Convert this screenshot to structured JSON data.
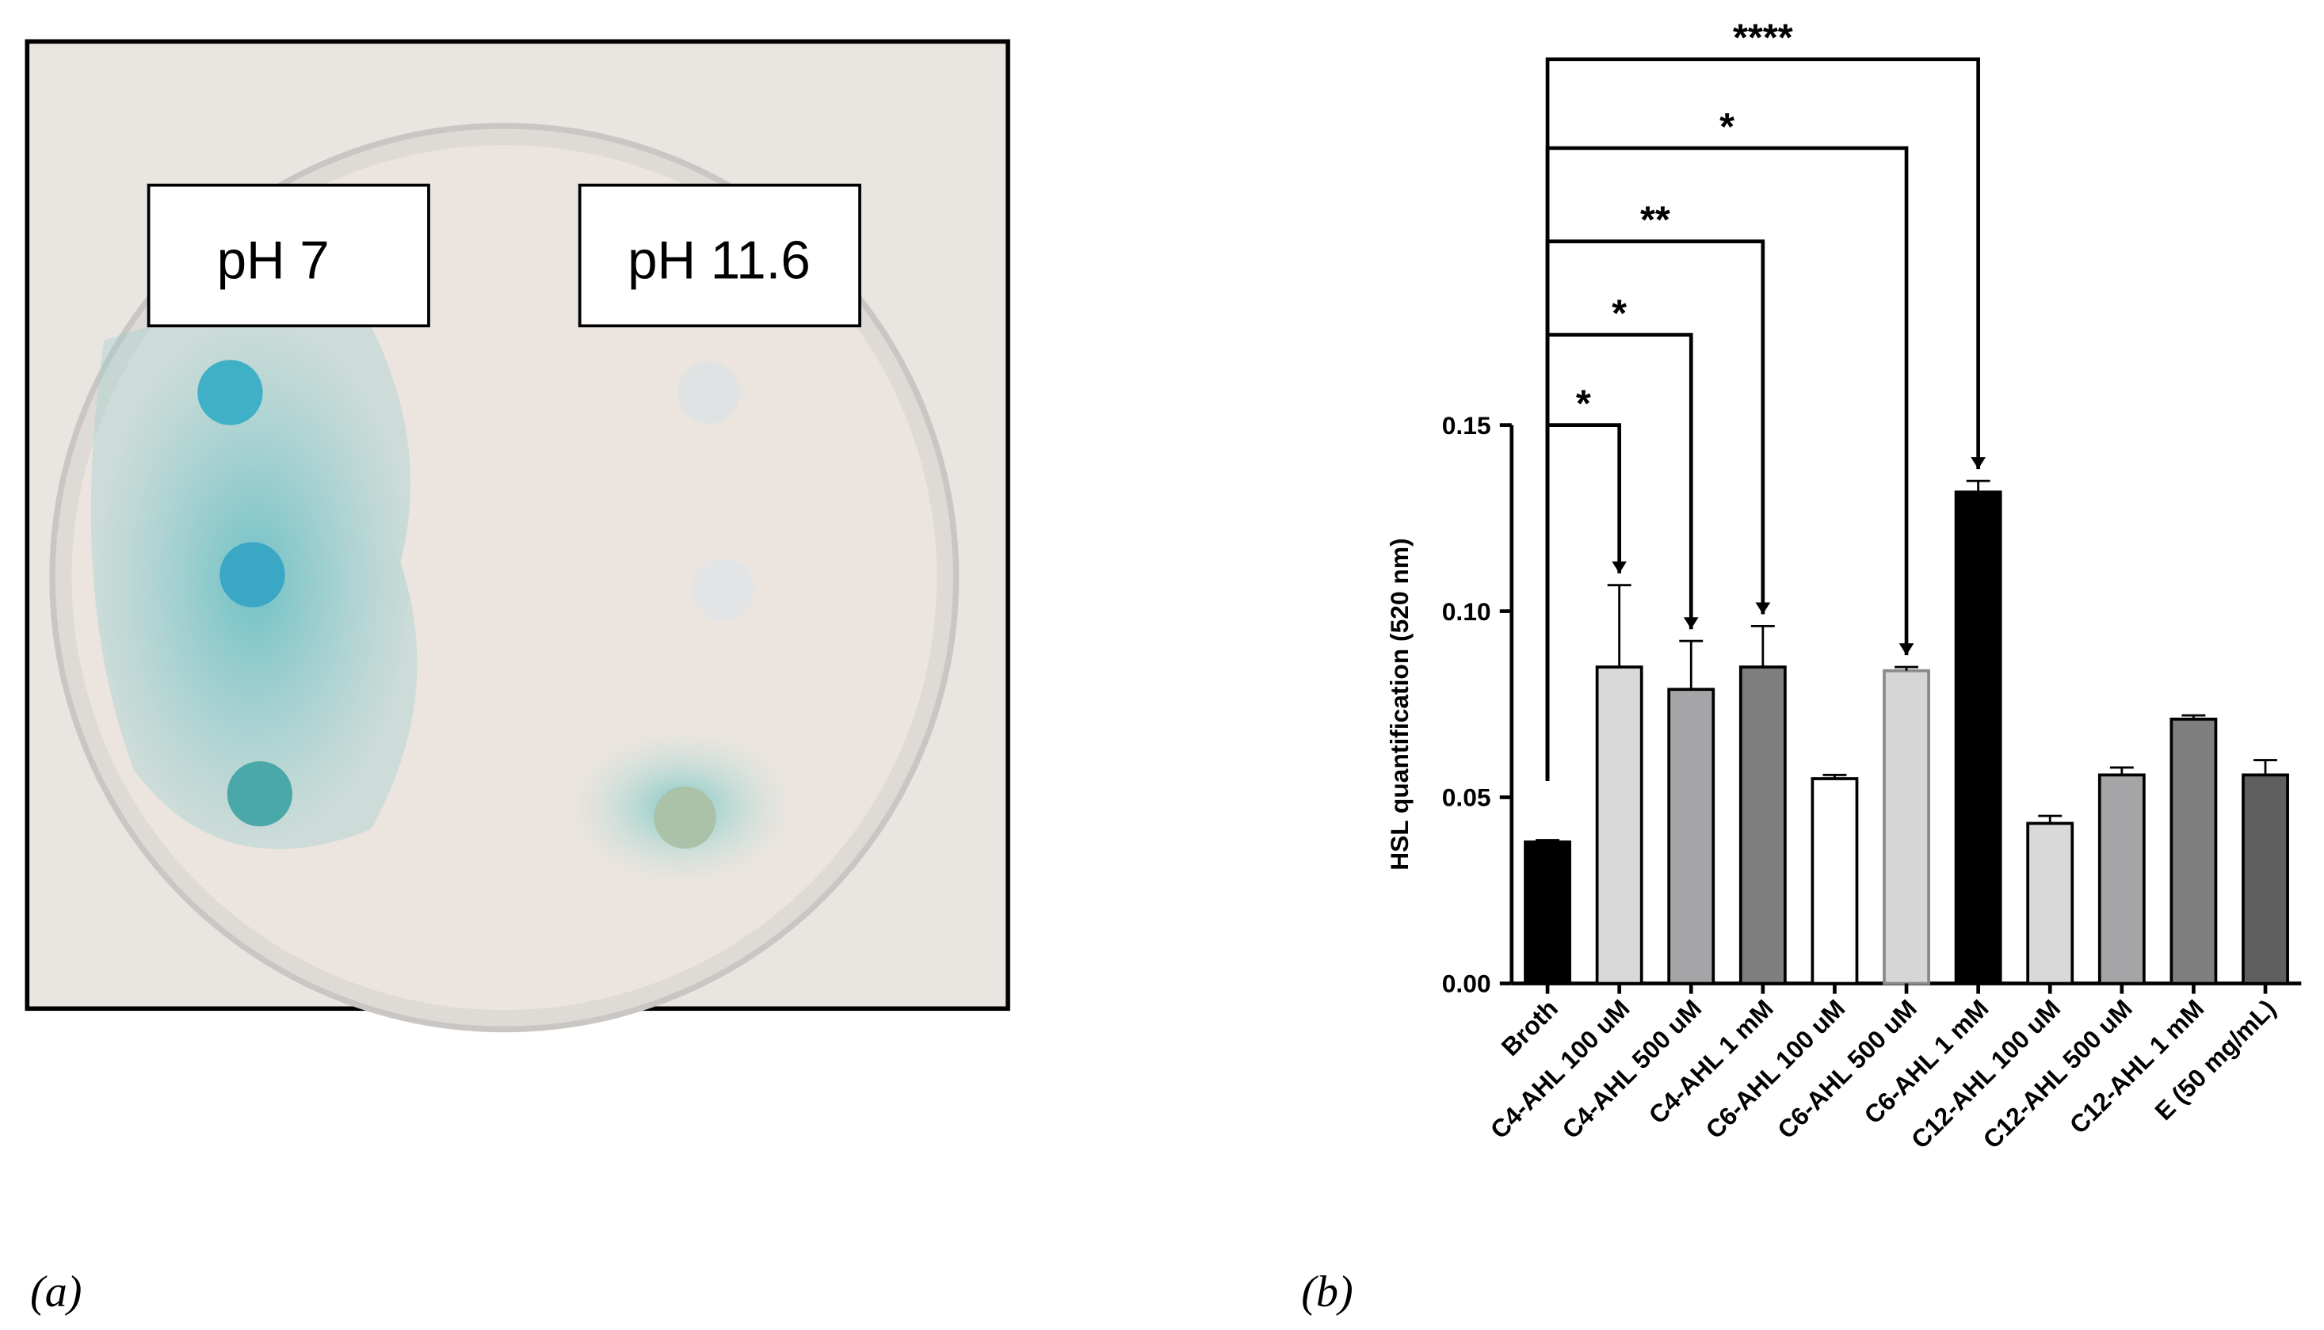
{
  "panel_labels": [
    "(a)",
    "(b)"
  ],
  "photo": {
    "labels": [
      "pH 7",
      "pH 11.6"
    ]
  },
  "chart_data": {
    "type": "bar",
    "y_label": "HSL quantification (520 nm)",
    "categories": [
      "Broth",
      "C4-AHL 100 uM",
      "C4-AHL 500 uM",
      "C4-AHL 1 mM",
      "C6-AHL 100 uM",
      "C6-AHL 500 uM",
      "C6-AHL 1 mM",
      "C12-AHL 100 uM",
      "C12-AHL 500 uM",
      "C12-AHL 1 mM",
      "E (50 mg/mL)"
    ],
    "values": [
      0.038,
      0.085,
      0.079,
      0.085,
      0.055,
      0.084,
      0.132,
      0.043,
      0.056,
      0.071,
      0.056
    ],
    "errors": [
      0.0005,
      0.022,
      0.013,
      0.011,
      0.001,
      0.001,
      0.003,
      0.002,
      0.002,
      0.001,
      0.004
    ],
    "colors": [
      "#000000",
      "#d9d9d9",
      "#a5a5a7",
      "#7f7f7f",
      "#ffffff",
      "#d6d6d6",
      "#000000",
      "#d9d9d9",
      "#a5a5a7",
      "#7f7f7f",
      "#5f5f5f"
    ],
    "ylim": [
      0,
      0.15
    ],
    "yticks": [
      {
        "value": 0,
        "label": "0.00"
      },
      {
        "value": 0.05,
        "label": "0.05"
      },
      {
        "value": 0.1,
        "label": "0.10"
      },
      {
        "value": 0.15,
        "label": "0.15"
      }
    ],
    "comparisons": [
      {
        "from": 0,
        "to": 1,
        "label": "*"
      },
      {
        "from": 0,
        "to": 2,
        "label": "*"
      },
      {
        "from": 0,
        "to": 3,
        "label": "**"
      },
      {
        "from": 0,
        "to": 5,
        "label": "*"
      },
      {
        "from": 0,
        "to": 6,
        "label": "****"
      }
    ]
  }
}
